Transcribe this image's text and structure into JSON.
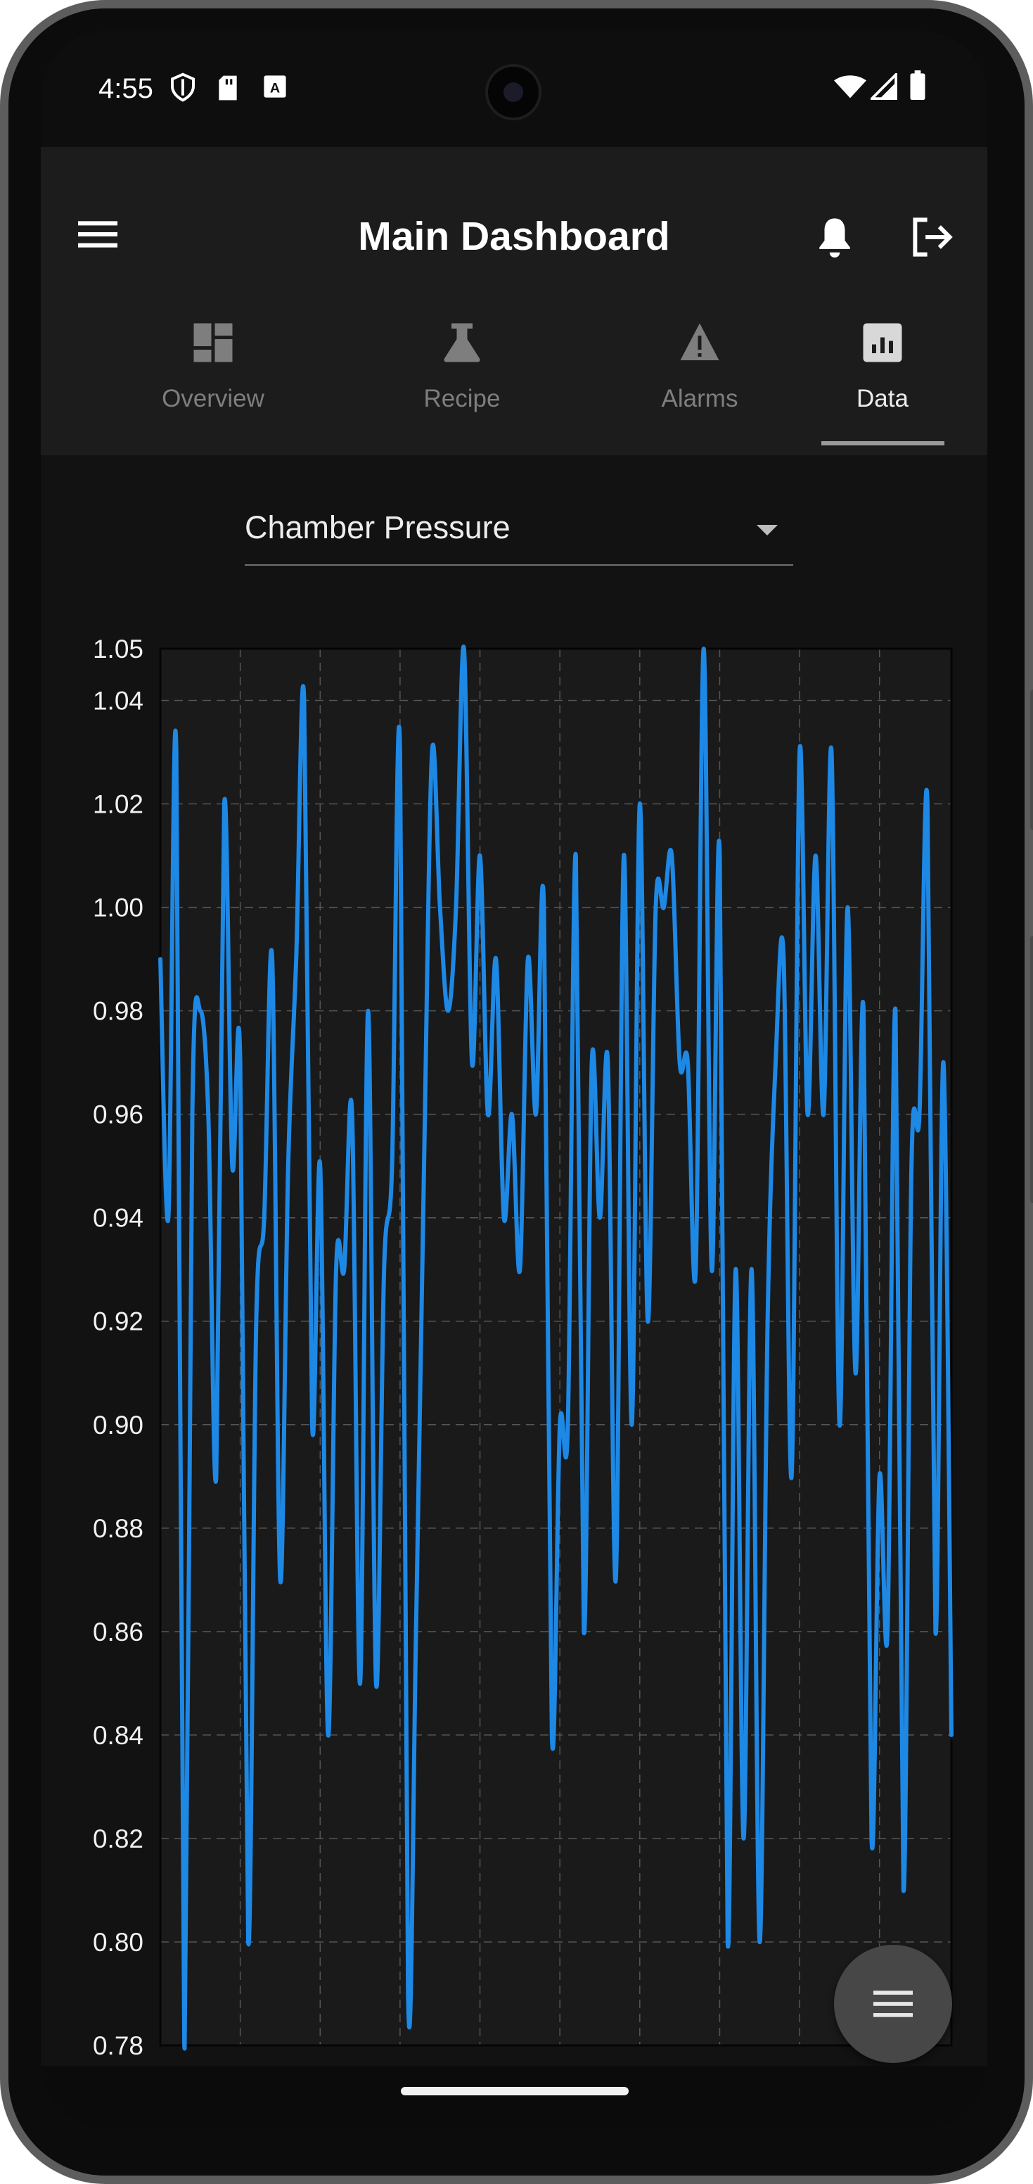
{
  "status_bar": {
    "time": "4:55"
  },
  "app_bar": {
    "title": "Main Dashboard"
  },
  "tabs": [
    {
      "label": "Overview",
      "icon": "dashboard-icon"
    },
    {
      "label": "Recipe",
      "icon": "flask-icon"
    },
    {
      "label": "Alarms",
      "icon": "warning-icon"
    },
    {
      "label": "Data",
      "icon": "chart-icon",
      "active": true
    }
  ],
  "parameter_select": {
    "value": "Chamber Pressure"
  },
  "colors": {
    "line": "#1e88e5",
    "background": "#121212",
    "surface": "#1c1c1c"
  },
  "chart_data": {
    "type": "line",
    "x": [
      0,
      1,
      2,
      3,
      4,
      5,
      6,
      7,
      8,
      9,
      10,
      11,
      12,
      13,
      14,
      15,
      16,
      17,
      18,
      19,
      20,
      21,
      22,
      23,
      24,
      25,
      26,
      27,
      28,
      29,
      30,
      31,
      32,
      33,
      34,
      35,
      36,
      37,
      38,
      39,
      40,
      41,
      42,
      43,
      44,
      45,
      46,
      47,
      48,
      49,
      50,
      51,
      52,
      53,
      54,
      55,
      56,
      57,
      58,
      59,
      60,
      61,
      62,
      63,
      64,
      65,
      66,
      67,
      68,
      69,
      70,
      71,
      72,
      73,
      74,
      75,
      76,
      77,
      78,
      79,
      80,
      81,
      82,
      83,
      84,
      85,
      86,
      87,
      88,
      89,
      90,
      91,
      92,
      93,
      94,
      95,
      96,
      97,
      98,
      99
    ],
    "series": [
      {
        "values": [
          0.99,
          0.94,
          1.03,
          0.78,
          0.96,
          0.98,
          0.96,
          0.89,
          1.02,
          0.95,
          0.97,
          0.8,
          0.92,
          0.94,
          0.99,
          0.87,
          0.95,
          0.99,
          1.04,
          0.9,
          0.95,
          0.84,
          0.93,
          0.93,
          0.96,
          0.85,
          0.98,
          0.85,
          0.93,
          0.95,
          1.03,
          0.79,
          0.86,
          0.95,
          1.03,
          1.0,
          0.98,
          1.0,
          1.05,
          0.97,
          1.01,
          0.96,
          0.99,
          0.94,
          0.96,
          0.93,
          0.99,
          0.96,
          1.0,
          0.84,
          0.9,
          0.9,
          1.01,
          0.86,
          0.97,
          0.94,
          0.97,
          0.87,
          1.01,
          0.9,
          1.02,
          0.92,
          1.0,
          1.0,
          1.01,
          0.97,
          0.97,
          0.93,
          1.05,
          0.93,
          1.01,
          0.8,
          0.93,
          0.82,
          0.93,
          0.8,
          0.92,
          0.97,
          0.99,
          0.89,
          1.03,
          0.96,
          1.01,
          0.96,
          1.03,
          0.9,
          1.0,
          0.91,
          0.98,
          0.82,
          0.89,
          0.86,
          0.98,
          0.81,
          0.95,
          0.96,
          1.02,
          0.86,
          0.97,
          0.84
        ]
      }
    ],
    "x_ticks": [
      "0",
      "10",
      "20",
      "30",
      "40",
      "50",
      "60",
      "70",
      "80",
      "90",
      "99"
    ],
    "y_ticks": [
      "0.78",
      "0.80",
      "0.82",
      "0.84",
      "0.86",
      "0.88",
      "0.90",
      "0.92",
      "0.94",
      "0.96",
      "0.98",
      "1.00",
      "1.02",
      "1.04",
      "1.05"
    ],
    "xlim": [
      0,
      99
    ],
    "ylim": [
      0.78,
      1.05
    ],
    "grid": true
  }
}
